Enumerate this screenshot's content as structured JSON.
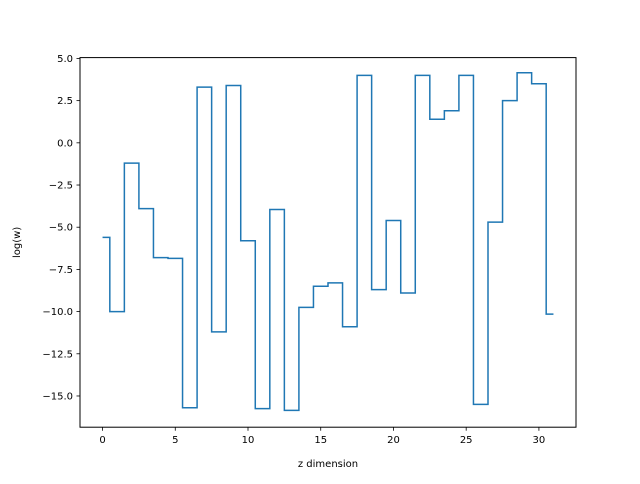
{
  "chart_data": {
    "type": "line",
    "drawstyle": "steps-mid",
    "title": "",
    "xlabel": "z dimension",
    "ylabel": "log(w)",
    "xlim": [
      -1.55,
      32.55
    ],
    "ylim": [
      -16.85,
      5.05
    ],
    "xticks": [
      0,
      5,
      10,
      15,
      20,
      25,
      30
    ],
    "xtick_labels": [
      "0",
      "5",
      "10",
      "15",
      "20",
      "25",
      "30"
    ],
    "yticks": [
      5.0,
      2.5,
      0.0,
      -2.5,
      -5.0,
      -7.5,
      -10.0,
      -12.5,
      -15.0
    ],
    "ytick_labels": [
      "5.0",
      "2.5",
      "0.0",
      "−2.5",
      "−5.0",
      "−7.5",
      "−10.0",
      "−12.5",
      "−15.0"
    ],
    "grid": false,
    "legend": false,
    "series": [
      {
        "color": "#1f77b4",
        "x": [
          0,
          1,
          2,
          3,
          4,
          5,
          6,
          7,
          8,
          9,
          10,
          11,
          12,
          13,
          14,
          15,
          16,
          17,
          18,
          19,
          20,
          21,
          22,
          23,
          24,
          25,
          26,
          27,
          28,
          29,
          30,
          31
        ],
        "values": [
          -5.6,
          -10.0,
          -1.2,
          -3.9,
          -6.8,
          -6.85,
          -15.7,
          3.3,
          -11.2,
          3.4,
          -5.8,
          -15.75,
          -3.95,
          -15.85,
          -9.75,
          -8.5,
          -8.3,
          -10.9,
          4.0,
          -8.7,
          -4.6,
          -8.9,
          4.0,
          1.4,
          1.9,
          4.0,
          -15.5,
          -4.7,
          2.5,
          4.15,
          3.5,
          -10.15
        ]
      }
    ]
  }
}
